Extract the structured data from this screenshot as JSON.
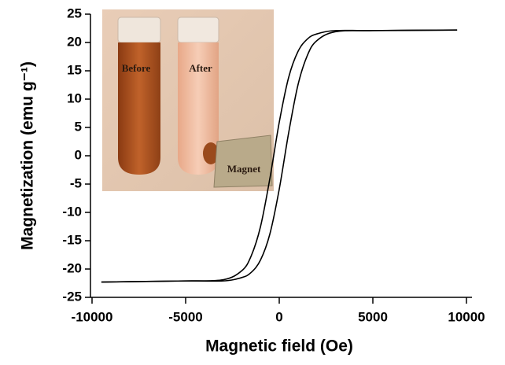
{
  "chart_data": {
    "type": "line",
    "xlabel": "Magnetic field (Oe)",
    "ylabel": "Magnetization (emu g⁻¹)",
    "annotations": [
      "Before",
      "After",
      "Magnet"
    ],
    "color": "#000000",
    "xlim": [
      -10000,
      10000
    ],
    "xticks": [
      -10000,
      -5000,
      0,
      5000,
      10000
    ],
    "ylim": [
      -25,
      25
    ],
    "yticks": [
      -25,
      -20,
      -15,
      -10,
      -5,
      0,
      5,
      10,
      15,
      20,
      25
    ],
    "grid": false,
    "series": [
      {
        "color": "#000000",
        "x": [
          -9500,
          -5000,
          -3000,
          -2000,
          -1500,
          -1000,
          -500,
          0,
          500,
          1000,
          1500,
          2000,
          3000,
          5000,
          9500
        ],
        "values": [
          -22.3,
          -22.1,
          -22.1,
          -21.5,
          -20.6,
          -18.4,
          -13.8,
          -5.9,
          4.0,
          12.5,
          17.7,
          20.3,
          21.9,
          22.1,
          22.2
        ]
      },
      {
        "color": "#000000",
        "x": [
          -9500,
          -5000,
          -3000,
          -2000,
          -1500,
          -1000,
          -500,
          0,
          500,
          1000,
          1500,
          2000,
          3000,
          5000,
          9500
        ],
        "values": [
          -22.3,
          -22.1,
          -21.9,
          -20.3,
          -17.7,
          -12.5,
          -4.0,
          5.9,
          13.8,
          18.4,
          20.6,
          21.5,
          22.1,
          22.1,
          22.2
        ]
      }
    ]
  }
}
